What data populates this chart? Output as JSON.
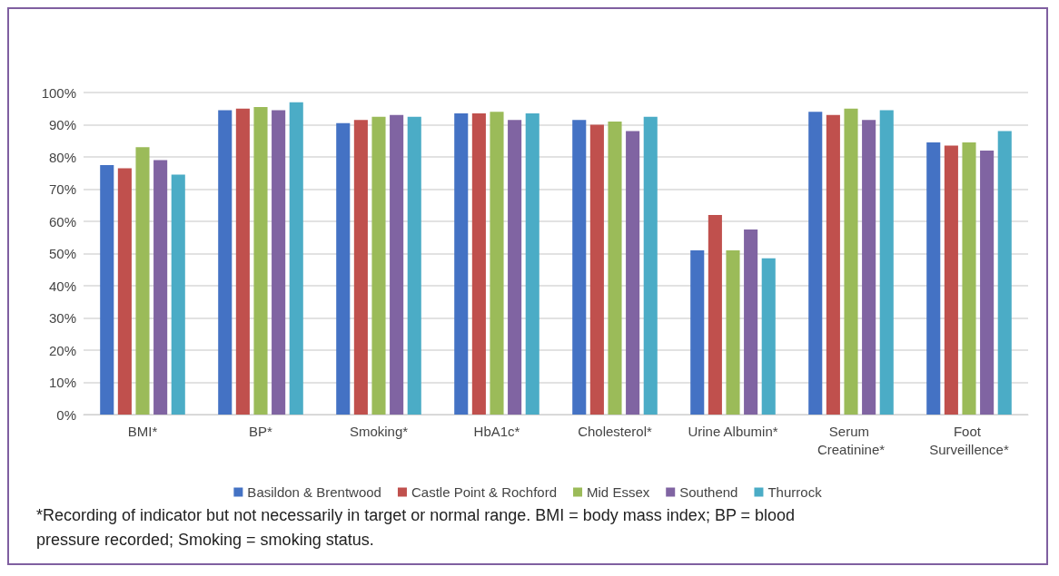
{
  "chart_data": {
    "type": "bar",
    "categories": [
      "BMI*",
      "BP*",
      "Smoking*",
      "HbA1c*",
      "Cholesterol*",
      "Urine Albumin*",
      "Serum Creatinine*",
      "Foot Surveillence*"
    ],
    "series": [
      {
        "name": "Basildon & Brentwood",
        "color": "#4472c4",
        "values": [
          77.5,
          94.5,
          90.5,
          93.5,
          91.5,
          51,
          94,
          84.5
        ]
      },
      {
        "name": "Castle Point & Rochford",
        "color": "#c0504d",
        "values": [
          76.5,
          95,
          91.5,
          93.5,
          90,
          62,
          93,
          83.5
        ]
      },
      {
        "name": "Mid Essex",
        "color": "#9bbb59",
        "values": [
          83,
          95.5,
          92.5,
          94,
          91,
          51,
          95,
          84.5
        ]
      },
      {
        "name": "Southend",
        "color": "#8064a2",
        "values": [
          79,
          94.5,
          93,
          91.5,
          88,
          57.5,
          91.5,
          82
        ]
      },
      {
        "name": "Thurrock",
        "color": "#4bacc6",
        "values": [
          74.5,
          97,
          92.5,
          93.5,
          92.5,
          48.5,
          94.5,
          88
        ]
      }
    ],
    "ylim": [
      0,
      100
    ],
    "yticks": [
      {
        "value": 0,
        "label": "0%"
      },
      {
        "value": 10,
        "label": "10%"
      },
      {
        "value": 20,
        "label": "20%"
      },
      {
        "value": 30,
        "label": "30%"
      },
      {
        "value": 40,
        "label": "40%"
      },
      {
        "value": 50,
        "label": "50%"
      },
      {
        "value": 60,
        "label": "60%"
      },
      {
        "value": 70,
        "label": "70%"
      },
      {
        "value": 80,
        "label": "80%"
      },
      {
        "value": 90,
        "label": "90%"
      },
      {
        "value": 100,
        "label": "100%"
      }
    ],
    "grid": "y",
    "legend": "bottom",
    "annotations": [
      "*Recording of indicator but not necessarily in target or normal range. BMI = body mass index; BP = blood pressure recorded; Smoking = smoking status."
    ]
  }
}
